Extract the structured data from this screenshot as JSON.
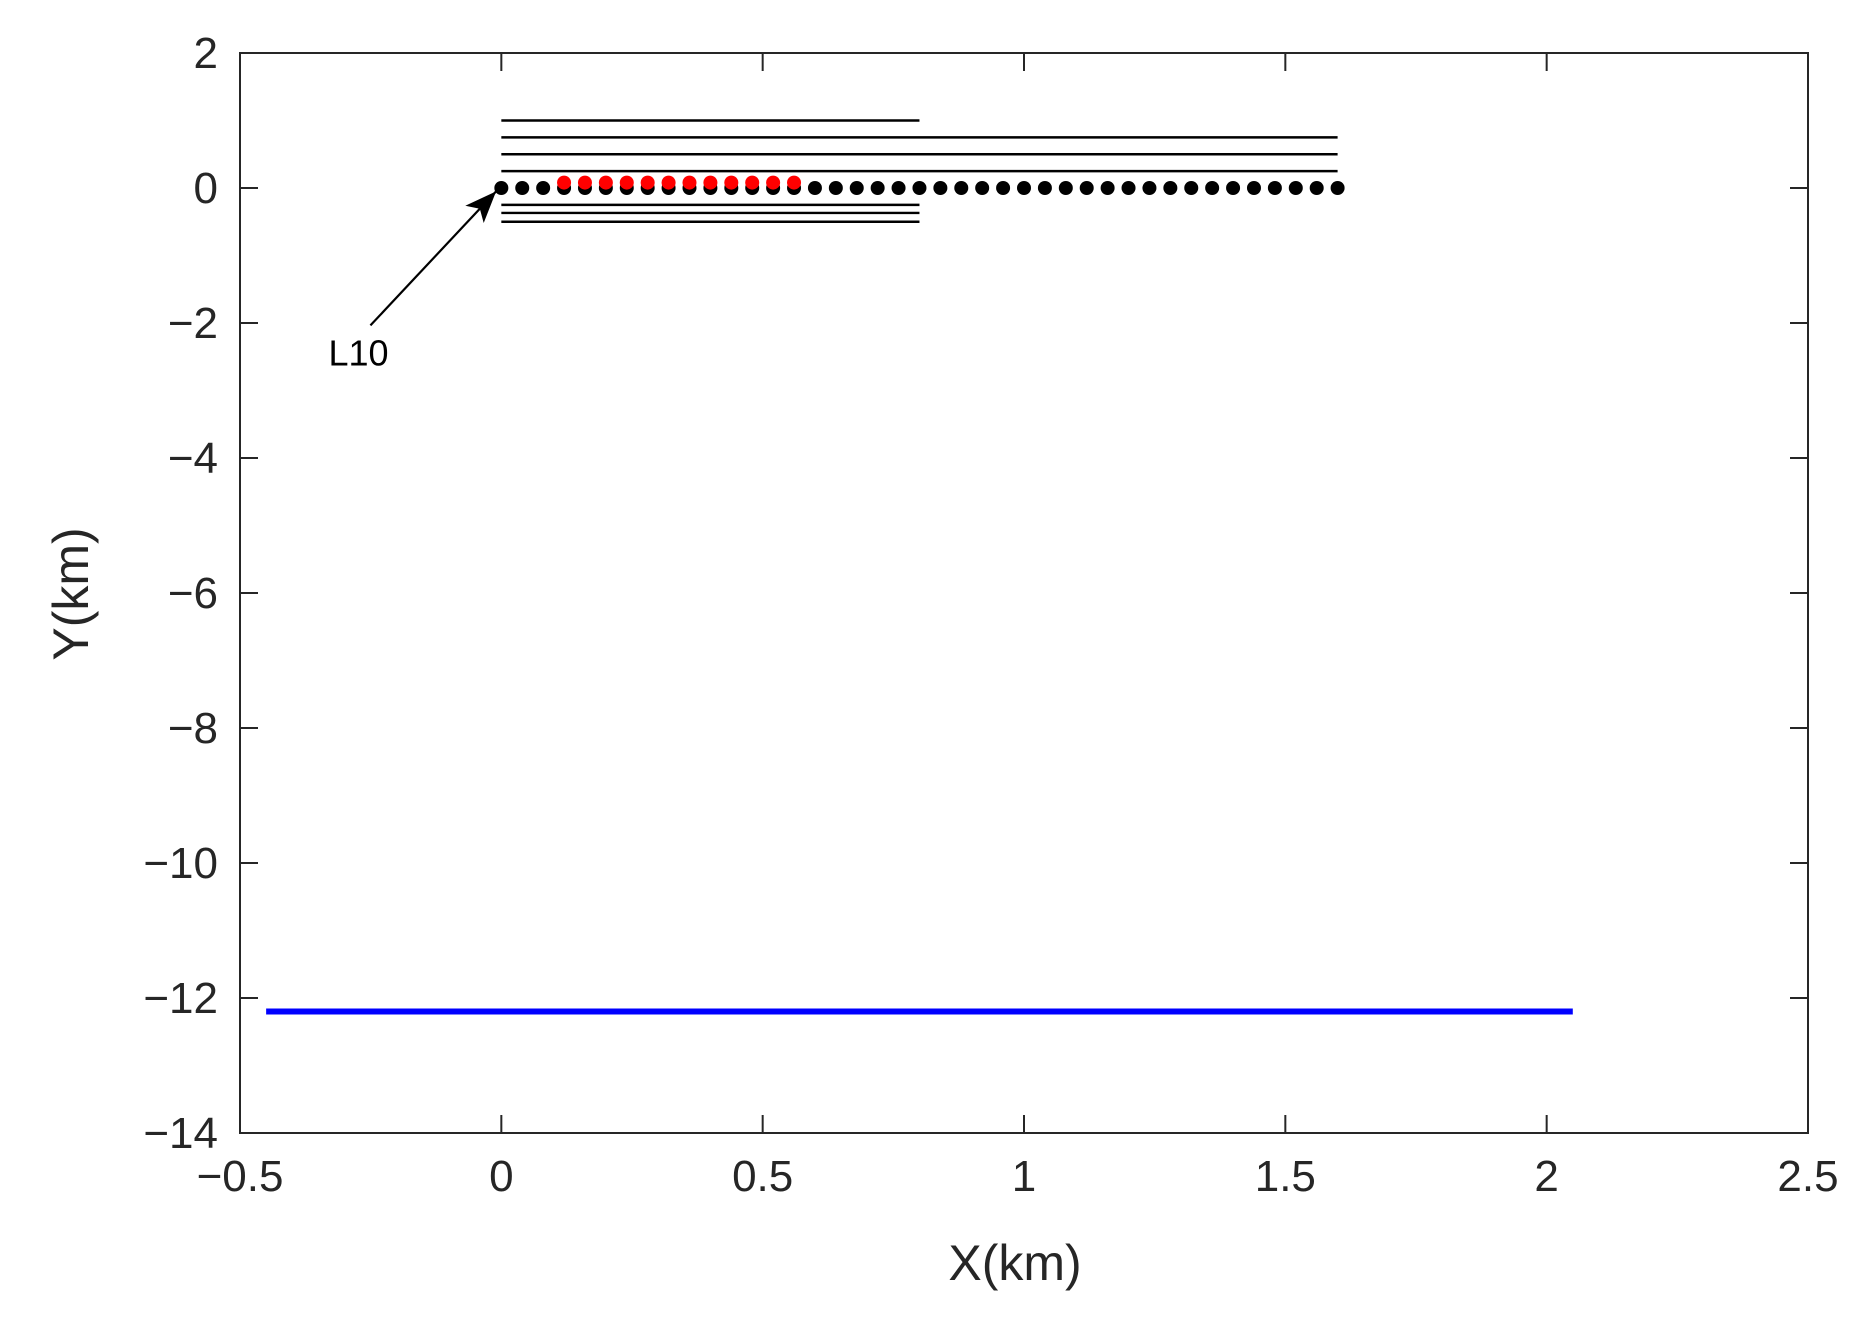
{
  "chart_data": {
    "type": "scatter",
    "title": "",
    "xlabel": "X(km)",
    "ylabel": "Y(km)",
    "xlim": [
      -0.5,
      2.5
    ],
    "ylim": [
      -14,
      2
    ],
    "xticks": [
      -0.5,
      0,
      0.5,
      1,
      1.5,
      2,
      2.5
    ],
    "xtick_labels": [
      "−0.5",
      "0",
      "0.5",
      "1",
      "1.5",
      "2",
      "2.5"
    ],
    "yticks": [
      2,
      0,
      -2,
      -4,
      -6,
      -8,
      -10,
      -12,
      -14
    ],
    "ytick_labels": [
      "2",
      "0",
      "−2",
      "−4",
      "−6",
      "−8",
      "−10",
      "−12",
      "−14"
    ],
    "grid": false,
    "box": true,
    "segments": [
      {
        "color": "#000000",
        "x": [
          0,
          0.8
        ],
        "y": [
          1.0,
          1.0
        ]
      },
      {
        "color": "#000000",
        "x": [
          0,
          1.6
        ],
        "y": [
          0.75,
          0.75
        ]
      },
      {
        "color": "#000000",
        "x": [
          0,
          1.6
        ],
        "y": [
          0.5,
          0.5
        ]
      },
      {
        "color": "#000000",
        "x": [
          0,
          1.6
        ],
        "y": [
          0.25,
          0.25
        ]
      },
      {
        "color": "#000000",
        "x": [
          0,
          0.8
        ],
        "y": [
          -0.25,
          -0.25
        ]
      },
      {
        "color": "#000000",
        "x": [
          0,
          0.8
        ],
        "y": [
          -0.37,
          -0.37
        ]
      },
      {
        "color": "#000000",
        "x": [
          0,
          0.8
        ],
        "y": [
          -0.5,
          -0.5
        ]
      },
      {
        "color": "#0000ff",
        "x": [
          -0.45,
          2.05
        ],
        "y": [
          -12.2,
          -12.2
        ],
        "thick": true
      }
    ],
    "series": [
      {
        "color": "#000000",
        "x_start": 0,
        "x_end": 1.6,
        "x_step": 0.04,
        "y": 0
      },
      {
        "color": "#ff0000",
        "x_start": 0.12,
        "x_end": 0.56,
        "x_step": 0.04,
        "y": 0.08
      }
    ],
    "annotations": [
      {
        "text": "L10",
        "x": -0.26,
        "y": -2.45,
        "arrow_to": [
          -0.01,
          -0.05
        ]
      }
    ]
  }
}
